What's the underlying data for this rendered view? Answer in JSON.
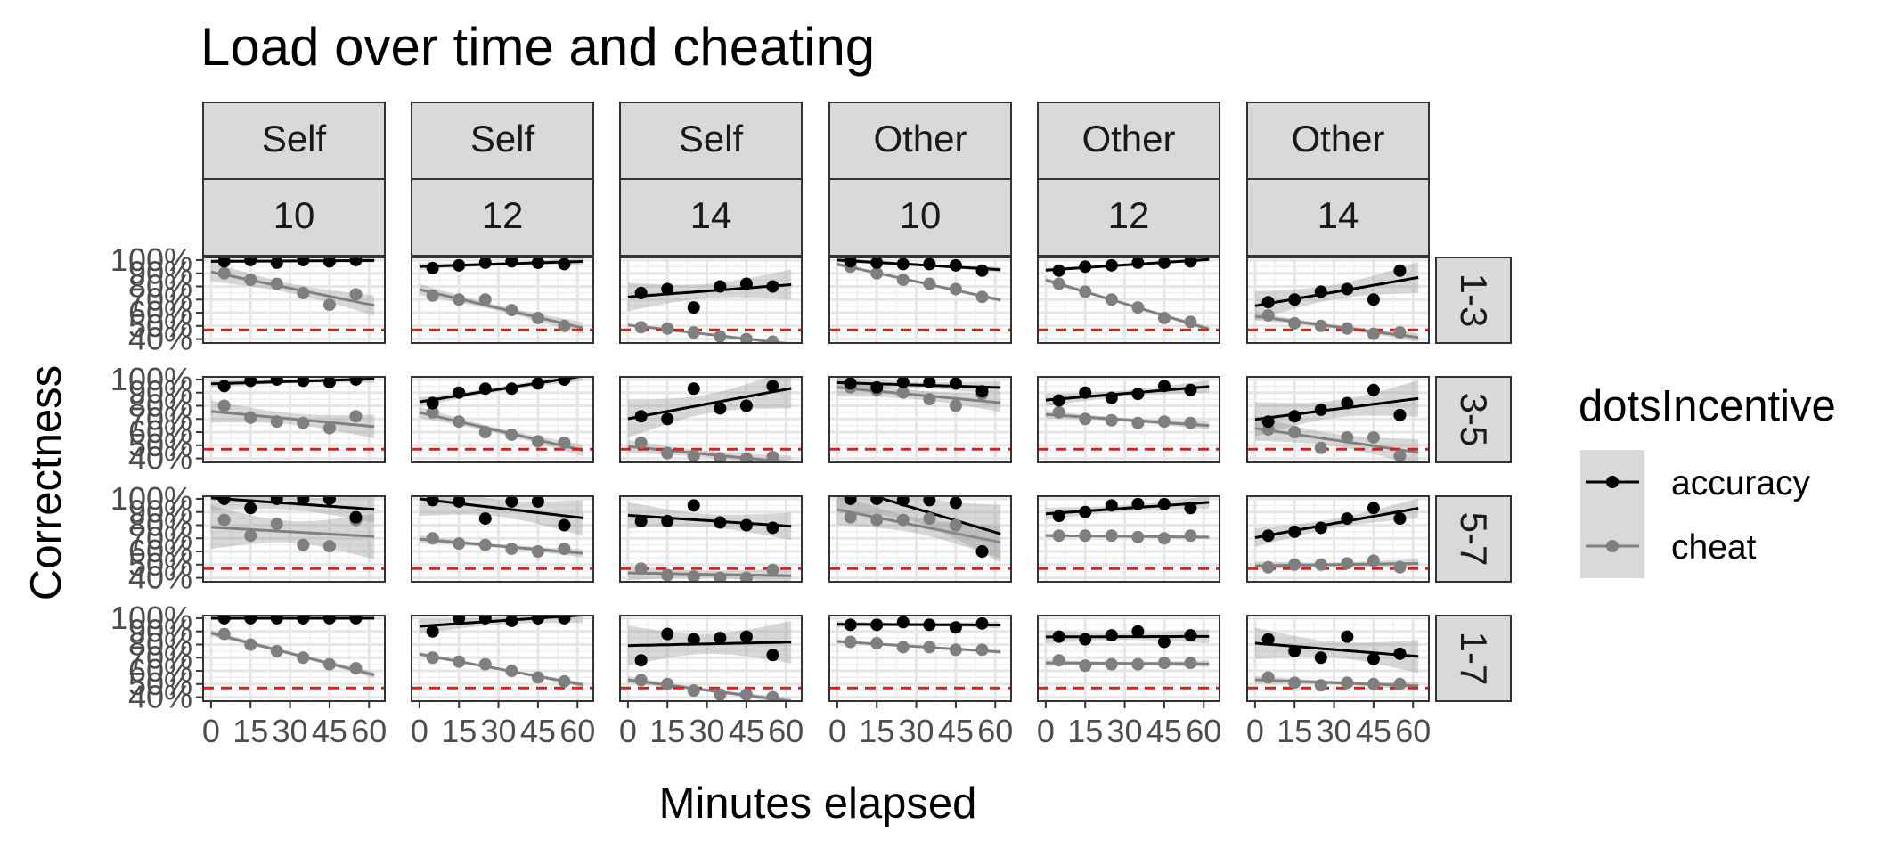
{
  "chart_data": {
    "type": "scatter",
    "title": "Load over time and cheating",
    "xlabel": "Minutes elapsed",
    "ylabel": "Correctness",
    "x_ticks": [
      "0",
      "15",
      "30",
      "45",
      "60"
    ],
    "y_ticks": [
      "40%",
      "50%",
      "60%",
      "70%",
      "80%",
      "90%",
      "100%"
    ],
    "xlim": [
      -3,
      66
    ],
    "ylim": [
      37,
      102
    ],
    "reference_line": {
      "y": 47,
      "color": "#e41a1c",
      "style": "dashed"
    },
    "column_strips": [
      {
        "top": "Self",
        "bottom": "10"
      },
      {
        "top": "Self",
        "bottom": "12"
      },
      {
        "top": "Self",
        "bottom": "14"
      },
      {
        "top": "Other",
        "bottom": "10"
      },
      {
        "top": "Other",
        "bottom": "12"
      },
      {
        "top": "Other",
        "bottom": "14"
      }
    ],
    "row_strips": [
      "1-3",
      "3-5",
      "5-7",
      "1-7"
    ],
    "legend": {
      "title": "dotsIncentive",
      "position": "right",
      "entries": [
        {
          "name": "accuracy",
          "color": "#000000"
        },
        {
          "name": "cheat",
          "color": "#7f7f7f"
        }
      ]
    },
    "x": [
      5,
      15,
      25,
      35,
      45,
      55
    ],
    "panels": [
      [
        {
          "accuracy": [
            99,
            100,
            98,
            100,
            99,
            100
          ],
          "cheat": [
            90,
            85,
            82,
            75,
            66,
            74
          ]
        },
        {
          "accuracy": [
            94,
            96,
            98,
            99,
            98,
            97
          ],
          "cheat": [
            73,
            70,
            70,
            62,
            56,
            50
          ]
        },
        {
          "accuracy": [
            75,
            78,
            64,
            80,
            82,
            80
          ],
          "cheat": [
            49,
            48,
            45,
            42,
            40,
            38
          ]
        },
        {
          "accuracy": [
            99,
            98,
            97,
            97,
            96,
            92
          ],
          "cheat": [
            95,
            90,
            85,
            82,
            78,
            72
          ]
        },
        {
          "accuracy": [
            92,
            95,
            96,
            98,
            98,
            99
          ],
          "cheat": [
            82,
            76,
            70,
            64,
            56,
            53
          ]
        },
        {
          "accuracy": [
            68,
            70,
            76,
            78,
            70,
            92
          ],
          "cheat": [
            58,
            52,
            50,
            48,
            44,
            45
          ]
        }
      ],
      [
        {
          "accuracy": [
            95,
            99,
            100,
            99,
            98,
            100
          ],
          "cheat": [
            80,
            71,
            68,
            67,
            63,
            72
          ]
        },
        {
          "accuracy": [
            82,
            90,
            93,
            93,
            97,
            100
          ],
          "cheat": [
            75,
            68,
            60,
            58,
            53,
            52
          ]
        },
        {
          "accuracy": [
            72,
            70,
            93,
            78,
            80,
            95
          ],
          "cheat": [
            52,
            44,
            42,
            40,
            40,
            41
          ]
        },
        {
          "accuracy": [
            97,
            94,
            98,
            98,
            97,
            91
          ],
          "cheat": [
            94,
            92,
            90,
            85,
            80,
            89
          ]
        },
        {
          "accuracy": [
            84,
            90,
            86,
            89,
            95,
            92
          ],
          "cheat": [
            75,
            70,
            69,
            67,
            68,
            67
          ]
        },
        {
          "accuracy": [
            68,
            72,
            77,
            82,
            92,
            73
          ],
          "cheat": [
            62,
            60,
            48,
            56,
            56,
            42
          ]
        }
      ],
      [
        {
          "accuracy": [
            100,
            93,
            100,
            100,
            100,
            86
          ],
          "cheat": [
            84,
            72,
            81,
            65,
            64,
            84
          ]
        },
        {
          "accuracy": [
            99,
            98,
            85,
            98,
            98,
            80
          ],
          "cheat": [
            70,
            66,
            65,
            62,
            60,
            62
          ]
        },
        {
          "accuracy": [
            83,
            83,
            95,
            82,
            80,
            78
          ],
          "cheat": [
            47,
            42,
            41,
            40,
            40,
            46
          ]
        },
        {
          "accuracy": [
            100,
            100,
            99,
            99,
            97,
            60
          ],
          "cheat": [
            86,
            84,
            84,
            85,
            80,
            60
          ]
        },
        {
          "accuracy": [
            87,
            90,
            95,
            96,
            96,
            93
          ],
          "cheat": [
            72,
            72,
            72,
            71,
            70,
            72
          ]
        },
        {
          "accuracy": [
            72,
            75,
            78,
            85,
            93,
            85
          ],
          "cheat": [
            48,
            50,
            50,
            51,
            53,
            48
          ]
        }
      ],
      [
        {
          "accuracy": [
            100,
            100,
            100,
            100,
            100,
            100
          ],
          "cheat": [
            88,
            80,
            75,
            70,
            65,
            62
          ]
        },
        {
          "accuracy": [
            90,
            100,
            100,
            98,
            100,
            100
          ],
          "cheat": [
            70,
            67,
            65,
            60,
            55,
            52
          ]
        },
        {
          "accuracy": [
            68,
            88,
            84,
            85,
            86,
            72
          ],
          "cheat": [
            53,
            50,
            45,
            42,
            42,
            40
          ]
        },
        {
          "accuracy": [
            95,
            95,
            97,
            95,
            93,
            96
          ],
          "cheat": [
            82,
            81,
            78,
            78,
            76,
            76
          ]
        },
        {
          "accuracy": [
            86,
            84,
            87,
            90,
            82,
            87
          ],
          "cheat": [
            68,
            64,
            65,
            65,
            66,
            66
          ]
        },
        {
          "accuracy": [
            84,
            75,
            70,
            86,
            69,
            73
          ],
          "cheat": [
            55,
            51,
            49,
            51,
            50,
            50
          ]
        }
      ]
    ]
  }
}
